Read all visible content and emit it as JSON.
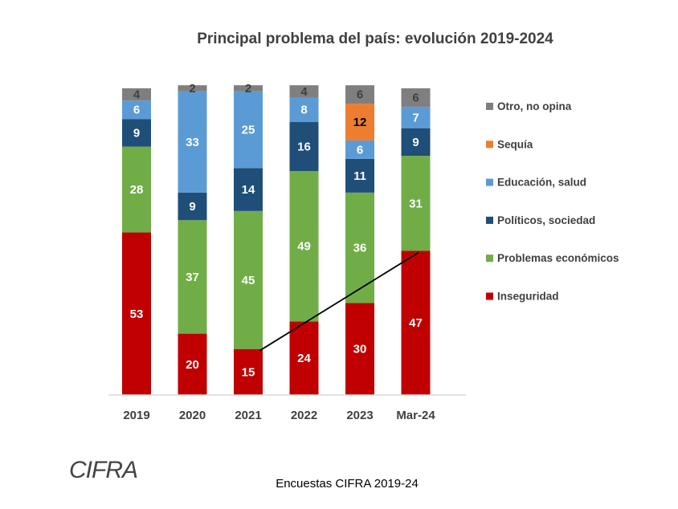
{
  "chart_data": {
    "type": "bar",
    "stacked": true,
    "title": "Principal problema del país: evolución 2019-2024",
    "categories": [
      "2019",
      "2020",
      "2021",
      "2022",
      "2023",
      "Mar-24"
    ],
    "series": [
      {
        "name": "Inseguridad",
        "color": "#C00000",
        "label_color": "#ffffff",
        "values": [
          53,
          20,
          15,
          24,
          30,
          47
        ]
      },
      {
        "name": "Problemas económicos",
        "color": "#70AD47",
        "label_color": "#ffffff",
        "values": [
          28,
          37,
          45,
          49,
          36,
          31
        ]
      },
      {
        "name": "Políticos, sociedad",
        "color": "#1F4E79",
        "label_color": "#ffffff",
        "values": [
          9,
          9,
          14,
          16,
          11,
          9
        ]
      },
      {
        "name": "Educación, salud",
        "color": "#5B9BD5",
        "label_color": "#ffffff",
        "values": [
          6,
          33,
          25,
          8,
          6,
          7
        ]
      },
      {
        "name": "Sequía",
        "color": "#ED7D31",
        "label_color": "#000000",
        "values": [
          0,
          0,
          0,
          0,
          12,
          0
        ]
      },
      {
        "name": "Otro, no opina",
        "color": "#7F7F7F",
        "label_color": "#404040",
        "values": [
          4,
          2,
          2,
          4,
          6,
          6
        ]
      }
    ],
    "legend_order": [
      "Otro, no opina",
      "Sequía",
      "Educación, salud",
      "Políticos, sociedad",
      "Problemas económicos",
      "Inseguridad"
    ],
    "legend_position": "right",
    "ylim": [
      0,
      100
    ],
    "grid": false,
    "trend_line": {
      "from_category": "2021",
      "to_category": "Mar-24",
      "series": "Inseguridad"
    }
  },
  "footer": {
    "logo_text": "CIFRA",
    "source": "Encuestas CIFRA 2019-24"
  }
}
